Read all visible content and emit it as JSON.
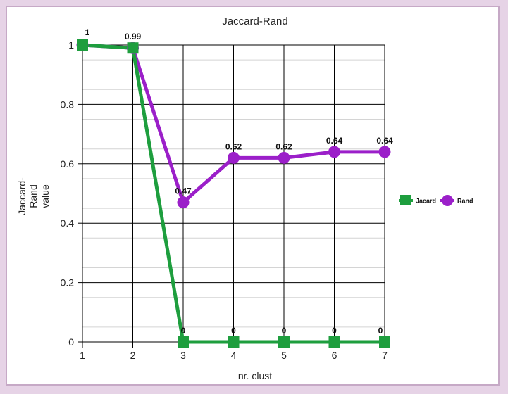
{
  "chart_data": {
    "type": "line",
    "title": "Jaccard-Rand",
    "xlabel": "nr. clust",
    "ylabel_lines": [
      "Jaccard-",
      "Rand",
      "value"
    ],
    "x": [
      1,
      2,
      3,
      4,
      5,
      6,
      7
    ],
    "x_tick_labels": [
      "1",
      "2",
      "3",
      "4",
      "5",
      "6",
      "7"
    ],
    "y_tick_labels": [
      "0",
      "0.2",
      "0.4",
      "0.6",
      "0.8",
      "1"
    ],
    "ylim": [
      0,
      1
    ],
    "xlim": [
      1,
      7
    ],
    "grid": true,
    "legend_position": "right",
    "series": [
      {
        "name": "Jacard",
        "color": "#1e9e3e",
        "marker": "square",
        "values": [
          1,
          0.99,
          0,
          0,
          0,
          0,
          0
        ],
        "labels": [
          "1",
          "0.99",
          "0",
          "0",
          "0",
          "0",
          "0"
        ]
      },
      {
        "name": "Rand",
        "color": "#9b1fc9",
        "marker": "circle",
        "values": [
          1,
          0.99,
          0.47,
          0.62,
          0.62,
          0.64,
          0.64
        ],
        "labels": [
          "",
          "",
          "0.47",
          "0.62",
          "0.62",
          "0.64",
          "0.64"
        ]
      }
    ]
  }
}
